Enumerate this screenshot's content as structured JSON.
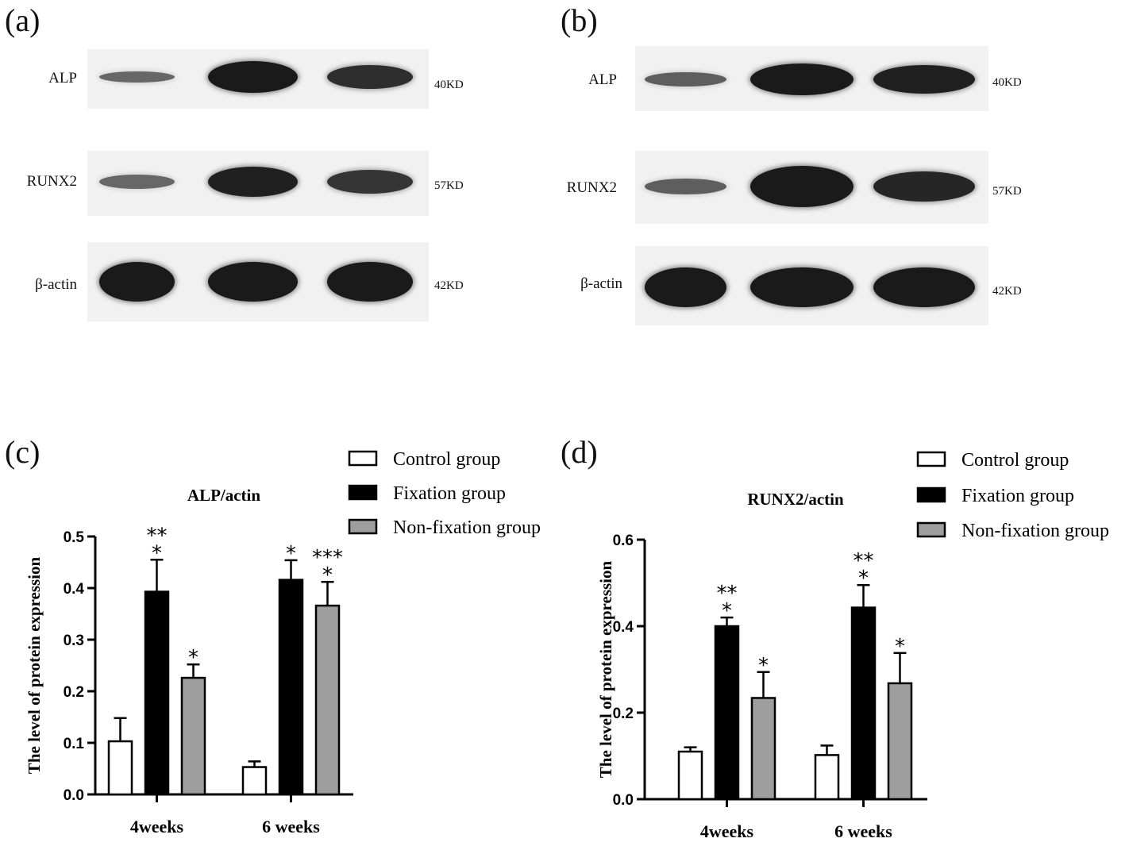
{
  "colors": {
    "control": "#ffffff",
    "fixation": "#000000",
    "nonfixation": "#9e9e9e",
    "band": "#1a1a1a"
  },
  "blots": [
    {
      "letter": "(a)",
      "rows": [
        {
          "protein": "ALP",
          "kd": "40KD",
          "intensity": [
            0.45,
            1.0,
            0.85
          ]
        },
        {
          "protein": "RUNX2",
          "kd": "57KD",
          "intensity": [
            0.45,
            0.95,
            0.8
          ]
        },
        {
          "protein": "β-actin",
          "kd": "42KD",
          "intensity": [
            1.0,
            1.0,
            1.0
          ]
        }
      ]
    },
    {
      "letter": "(b)",
      "rows": [
        {
          "protein": "ALP",
          "kd": "40KD",
          "intensity": [
            0.5,
            1.0,
            0.95
          ]
        },
        {
          "protein": "RUNX2",
          "kd": "57KD",
          "intensity": [
            0.5,
            1.0,
            0.9
          ]
        },
        {
          "protein": "β-actin",
          "kd": "42KD",
          "intensity": [
            1.0,
            1.0,
            1.0
          ]
        }
      ]
    }
  ],
  "chart_data": [
    {
      "letter": "(c)",
      "type": "bar",
      "title": "ALP/actin",
      "ylabel": "The level of protein expression",
      "ylim": [
        0,
        0.5
      ],
      "yticks": [
        "0.0",
        "0.1",
        "0.2",
        "0.3",
        "0.4",
        "0.5"
      ],
      "categories": [
        "4weeks",
        "6 weeks"
      ],
      "series": [
        {
          "name": "Control group",
          "values": [
            0.103,
            0.053
          ],
          "errors": [
            0.045,
            0.011
          ],
          "stars": [
            "",
            ""
          ]
        },
        {
          "name": "Fixation group",
          "values": [
            0.393,
            0.416
          ],
          "errors": [
            0.062,
            0.038
          ],
          "stars": [
            "**\n*",
            "*"
          ]
        },
        {
          "name": "Non-fixation group",
          "values": [
            0.226,
            0.366
          ],
          "errors": [
            0.026,
            0.046
          ],
          "stars": [
            "*",
            "***\n*"
          ]
        }
      ]
    },
    {
      "letter": "(d)",
      "type": "bar",
      "title": "RUNX2/actin",
      "ylabel": "The level of protein expression",
      "ylim": [
        0,
        0.6
      ],
      "yticks": [
        "0.0",
        "0.2",
        "0.4",
        "0.6"
      ],
      "categories": [
        "4weeks",
        "6 weeks"
      ],
      "series": [
        {
          "name": "Control group",
          "values": [
            0.11,
            0.102
          ],
          "errors": [
            0.01,
            0.022
          ],
          "stars": [
            "",
            ""
          ]
        },
        {
          "name": "Fixation group",
          "values": [
            0.4,
            0.443
          ],
          "errors": [
            0.02,
            0.052
          ],
          "stars": [
            "**\n*",
            "**\n*"
          ]
        },
        {
          "name": "Non-fixation group",
          "values": [
            0.234,
            0.268
          ],
          "errors": [
            0.06,
            0.07
          ],
          "stars": [
            "*",
            "*"
          ]
        }
      ]
    }
  ]
}
